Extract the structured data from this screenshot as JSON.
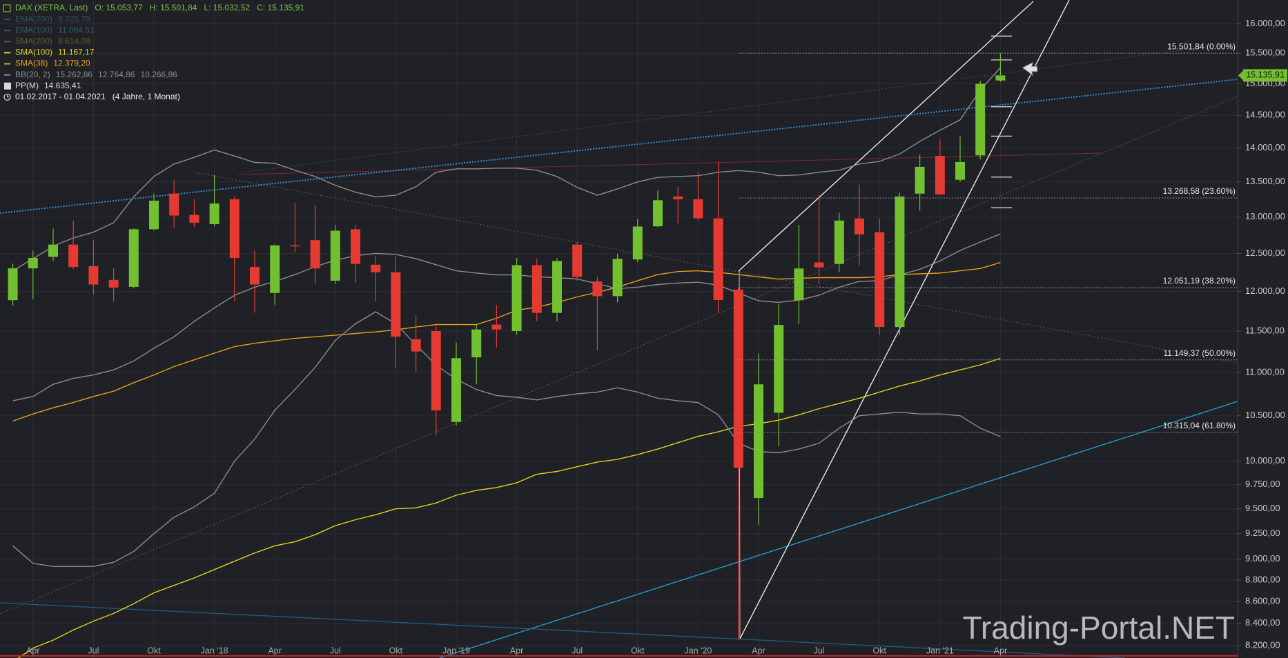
{
  "chart_data": {
    "type": "candlestick",
    "header": {
      "instrument": "DAX (XETRA, Last)",
      "ohlc": [
        "O: 15.053,77",
        "H: 15.501,84",
        "L: 15.032,52",
        "C: 15.135,91"
      ]
    },
    "period": {
      "range": "01.02.2017 - 01.04.2021",
      "span": "(4 Jahre, 1 Monat)"
    },
    "watermark": "Trading-Portal.NET",
    "categories": [
      null,
      "Apr",
      null,
      null,
      "Jul",
      null,
      null,
      "Okt",
      null,
      null,
      "Jan '18",
      null,
      null,
      "Apr",
      null,
      null,
      "Jul",
      null,
      null,
      "Okt",
      null,
      null,
      "Jan '19",
      null,
      null,
      "Apr",
      null,
      null,
      "Jul",
      null,
      null,
      "Okt",
      null,
      null,
      "Jan '20",
      null,
      null,
      "Apr",
      null,
      null,
      "Jul",
      null,
      null,
      "Okt",
      null,
      null,
      "Jan '21",
      null,
      null,
      "Apr"
    ],
    "up_color": "#72bf2f",
    "down_color": "#e53a32",
    "open": [
      11888,
      12302,
      12455,
      12620,
      12330,
      12150,
      12060,
      12830,
      13330,
      13030,
      12900,
      13250,
      12320,
      11980,
      12610,
      12680,
      12140,
      12830,
      12350,
      12250,
      11400,
      11500,
      10430,
      11180,
      11580,
      11500,
      12344,
      11727,
      12620,
      12130,
      11940,
      12420,
      12870,
      13290,
      13250,
      12981,
      12024,
      9611,
      10534,
      11888,
      12380,
      12360,
      12980,
      12790,
      11550,
      13330,
      13881,
      13530,
      13890,
      15053.77
    ],
    "high": [
      12365,
      12540,
      12840,
      12950,
      12680,
      12300,
      12840,
      13330,
      13530,
      13250,
      13600,
      13290,
      12540,
      12620,
      13200,
      13170,
      12890,
      12890,
      12460,
      12460,
      11700,
      11560,
      11360,
      11590,
      11830,
      12440,
      12435,
      12438,
      12656,
      12190,
      12494,
      12973,
      13374,
      13425,
      13640,
      13795,
      12050,
      11225,
      11840,
      12890,
      13310,
      13060,
      13460,
      12980,
      13340,
      13900,
      14130,
      14180,
      15050,
      15501.84
    ],
    "low": [
      11820,
      11900,
      12400,
      12290,
      11960,
      11870,
      12040,
      12810,
      12850,
      12860,
      12870,
      11870,
      11730,
      11830,
      12520,
      12100,
      12100,
      12110,
      11870,
      11050,
      11010,
      10280,
      10390,
      10860,
      11300,
      11460,
      11620,
      11620,
      12140,
      11266,
      11860,
      12380,
      12860,
      12910,
      12949,
      11725,
      8255,
      9340,
      10160,
      11590,
      12100,
      12250,
      12340,
      11450,
      11450,
      13090,
      13310,
      13500,
      13830,
      15032.52
    ],
    "close": [
      12302,
      12440,
      12620,
      12320,
      12090,
      12050,
      12830,
      13230,
      13020,
      12920,
      13190,
      12440,
      12090,
      12610,
      12600,
      12300,
      12810,
      12360,
      12250,
      11430,
      11250,
      10560,
      11170,
      11520,
      11520,
      12344,
      11727,
      12399,
      12189,
      11939,
      12428,
      12867,
      13236,
      13249,
      12981,
      11890,
      9930,
      10860,
      11576,
      12300,
      12315,
      12950,
      12760,
      11550,
      13290,
      13720,
      13319,
      13790,
      15000,
      15135.91
    ],
    "indicators": [
      {
        "name": "EMA(200)",
        "color": "#35505e",
        "legend_value": "9.225,79"
      },
      {
        "name": "EMA(100)",
        "color": "#2f5b66",
        "legend_value": "11.084,51"
      },
      {
        "name": "SMA(200)",
        "color": "#5c5b2c",
        "legend_value": "8.614,08"
      },
      {
        "name": "SMA(100)",
        "color": "#e2d11b",
        "legend_value": "11.167,17",
        "values": [
          8060,
          8180,
          8250,
          8340,
          8420,
          8490,
          8580,
          8680,
          8750,
          8820,
          8900,
          8980,
          9060,
          9130,
          9170,
          9240,
          9330,
          9390,
          9440,
          9500,
          9510,
          9560,
          9640,
          9690,
          9720,
          9770,
          9860,
          9890,
          9940,
          9990,
          10020,
          10070,
          10130,
          10200,
          10270,
          10320,
          10380,
          10410,
          10450,
          10510,
          10580,
          10640,
          10700,
          10770,
          10840,
          10900,
          10970,
          11030,
          11090,
          11167.17
        ]
      },
      {
        "name": "SMA(38)",
        "color": "#e79f20",
        "legend_value": "12.379,20",
        "values": [
          10440,
          10520,
          10590,
          10650,
          10720,
          10780,
          10880,
          10970,
          11070,
          11150,
          11230,
          11310,
          11350,
          11380,
          11410,
          11430,
          11450,
          11470,
          11490,
          11515,
          11550,
          11580,
          11580,
          11580,
          11660,
          11760,
          11800,
          11860,
          11930,
          11990,
          12056,
          12140,
          12220,
          12260,
          12270,
          12250,
          12220,
          12190,
          12160,
          12170,
          12180,
          12180,
          12180,
          12190,
          12220,
          12230,
          12240,
          12270,
          12300,
          12379.2
        ]
      },
      {
        "name": "BB(20, 2)",
        "color": "#8c8c8c",
        "legend_value": [
          "15.262,86",
          "12.764,86",
          "10.266,86"
        ],
        "upper": [
          12270,
          12430,
          12598,
          12711,
          12790,
          12920,
          13284,
          13578,
          13761,
          13860,
          13970,
          13880,
          13785,
          13773,
          13670,
          13578,
          13450,
          13350,
          13284,
          13307,
          13430,
          13641,
          13690,
          13690,
          13700,
          13700,
          13670,
          13578,
          13420,
          13307,
          13398,
          13500,
          13565,
          13578,
          13590,
          13641,
          13665,
          13641,
          13590,
          13600,
          13641,
          13670,
          13761,
          13800,
          13910,
          14100,
          14270,
          14430,
          14900,
          15262.86
        ],
        "middle": [
          10670,
          10720,
          10860,
          10930,
          10970,
          11030,
          11136,
          11290,
          11430,
          11620,
          11790,
          11951,
          12056,
          12130,
          12220,
          12325,
          12410,
          12470,
          12500,
          12488,
          12430,
          12350,
          12270,
          12240,
          12216,
          12216,
          12190,
          12180,
          12162,
          12100,
          12035,
          12056,
          12090,
          12110,
          12120,
          12080,
          11980,
          11880,
          11860,
          11890,
          11951,
          12056,
          12130,
          12140,
          12216,
          12290,
          12400,
          12540,
          12655,
          12764.86
        ],
        "lower": [
          9130,
          8960,
          8930,
          8930,
          8930,
          8970,
          9075,
          9250,
          9415,
          9520,
          9660,
          10000,
          10240,
          10562,
          10800,
          11060,
          11385,
          11590,
          11741,
          11590,
          11333,
          11085,
          10920,
          10800,
          10730,
          10710,
          10680,
          10720,
          10750,
          10770,
          10820,
          10770,
          10700,
          10670,
          10650,
          10510,
          10195,
          10105,
          10090,
          10130,
          10195,
          10360,
          10500,
          10520,
          10540,
          10520,
          10520,
          10500,
          10360,
          10266.86
        ]
      },
      {
        "name": "PP(M)",
        "color": "#d9d9d9",
        "legend_value": "14.635,41",
        "levels": [
          15790,
          15390,
          14635.41,
          14180,
          13570,
          13130
        ]
      }
    ],
    "fib_levels": [
      {
        "value": 15501.84,
        "label": "15.501,84 (0.00%)"
      },
      {
        "value": 13268.58,
        "label": "13.268,58 (23.60%)"
      },
      {
        "value": 12051.19,
        "label": "12.051,19 (38.20%)"
      },
      {
        "value": 11149.37,
        "label": "11.149,37 (50.00%)"
      },
      {
        "value": 10315.04,
        "label": "10.315,04 (61.80%)"
      }
    ],
    "last_price": {
      "value": 15135.91,
      "label": "15.135,91"
    },
    "log_scale": true,
    "grid": true,
    "ylim": [
      8093,
      16414
    ],
    "yticks": [
      {
        "value": 16000,
        "label": "16.000,00"
      },
      {
        "value": 15500,
        "label": "15.500,00"
      },
      {
        "value": 15000,
        "label": "15.000,00"
      },
      {
        "value": 14500,
        "label": "14.500,00"
      },
      {
        "value": 14000,
        "label": "14.000,00"
      },
      {
        "value": 13500,
        "label": "13.500,00"
      },
      {
        "value": 13000,
        "label": "13.000,00"
      },
      {
        "value": 12500,
        "label": "12.500,00"
      },
      {
        "value": 12000,
        "label": "12.000,00"
      },
      {
        "value": 11500,
        "label": "11.500,00"
      },
      {
        "value": 11000,
        "label": "11.000,00"
      },
      {
        "value": 10500,
        "label": "10.500,00"
      },
      {
        "value": 10000,
        "label": "10.000,00"
      },
      {
        "value": 9750,
        "label": "9.750,00"
      },
      {
        "value": 9500,
        "label": "9.500,00"
      },
      {
        "value": 9250,
        "label": "9.250,00"
      },
      {
        "value": 9000,
        "label": "9.000,00"
      },
      {
        "value": 8800,
        "label": "8.800,00"
      },
      {
        "value": 8600,
        "label": "8.600,00"
      },
      {
        "value": 8400,
        "label": "8.400,00"
      },
      {
        "value": 8200,
        "label": "8.200,00"
      }
    ]
  }
}
